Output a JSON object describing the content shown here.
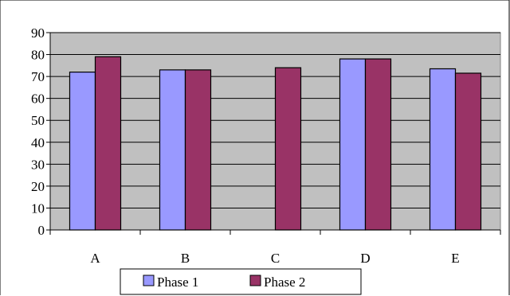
{
  "chart_data": {
    "type": "bar",
    "categories": [
      "A",
      "B",
      "C",
      "D",
      "E"
    ],
    "series": [
      {
        "name": "Phase 1",
        "values": [
          72,
          73,
          null,
          78,
          73.5
        ],
        "color": "#9999ff"
      },
      {
        "name": "Phase 2",
        "values": [
          79,
          73,
          74,
          78,
          71.5
        ],
        "color": "#993366"
      }
    ],
    "ylim": [
      0,
      90
    ],
    "yticks": [
      "0",
      "10",
      "20",
      "30",
      "40",
      "50",
      "60",
      "70",
      "80",
      "90"
    ],
    "grid": true,
    "plot_background": "#c0c0c0",
    "legend_position": "bottom"
  }
}
